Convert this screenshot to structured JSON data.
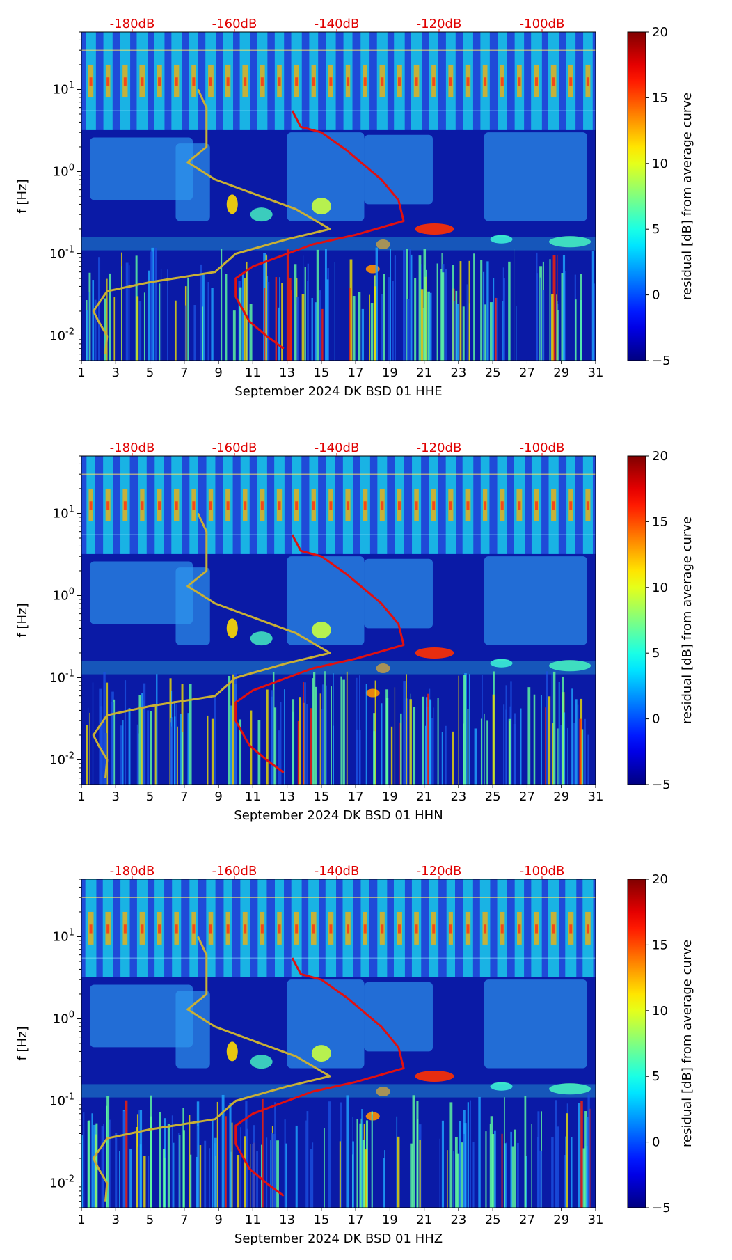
{
  "chart_data": [
    {
      "type": "heatmap",
      "xlabel": "September 2024 DK BSD 01 HHE",
      "ylabel": "f [Hz]",
      "x_ticks": [
        "1",
        "3",
        "5",
        "7",
        "9",
        "11",
        "13",
        "15",
        "17",
        "19",
        "21",
        "23",
        "25",
        "27",
        "29",
        "31"
      ],
      "y_ticks": [
        "10^-2",
        "10^-1",
        "10^0",
        "10^1"
      ],
      "xlim": [
        1,
        31
      ],
      "ylim": [
        0.005,
        50
      ],
      "y_scale": "log",
      "top_ticks": [
        "-180dB",
        "-160dB",
        "-140dB",
        "-120dB",
        "-100dB"
      ],
      "top_color": "#e00000",
      "colorbar": {
        "label": "residual [dB] from average curve",
        "ticks": [
          "-5",
          "0",
          "5",
          "10",
          "15",
          "20"
        ],
        "range": [
          -5,
          20
        ],
        "colormap": "jet"
      },
      "series": [
        {
          "color": "#e01010",
          "points": [
            [
              13.3,
              5.5
            ],
            [
              13.8,
              3.5
            ],
            [
              15.0,
              3.0
            ],
            [
              16.5,
              1.8
            ],
            [
              18.5,
              0.8
            ],
            [
              19.5,
              0.45
            ],
            [
              19.8,
              0.25
            ],
            [
              17.0,
              0.17
            ],
            [
              14.5,
              0.13
            ],
            [
              13.0,
              0.1
            ],
            [
              11.0,
              0.07
            ],
            [
              10.0,
              0.05
            ],
            [
              10.0,
              0.03
            ],
            [
              10.8,
              0.015
            ],
            [
              11.8,
              0.01
            ],
            [
              12.8,
              0.007
            ]
          ]
        },
        {
          "color": "#c9b035",
          "points": [
            [
              7.8,
              10.0
            ],
            [
              8.3,
              6.0
            ],
            [
              8.3,
              2.0
            ],
            [
              7.2,
              1.3
            ],
            [
              8.8,
              0.8
            ],
            [
              13.5,
              0.35
            ],
            [
              15.5,
              0.2
            ],
            [
              13.0,
              0.15
            ],
            [
              10.0,
              0.1
            ],
            [
              8.8,
              0.06
            ],
            [
              5.0,
              0.045
            ],
            [
              2.5,
              0.035
            ],
            [
              1.7,
              0.02
            ],
            [
              2.0,
              0.015
            ],
            [
              2.5,
              0.01
            ],
            [
              2.4,
              0.006
            ]
          ]
        }
      ]
    },
    {
      "type": "heatmap",
      "xlabel": "September 2024 DK BSD 01 HHN",
      "ylabel": "f [Hz]",
      "x_ticks": [
        "1",
        "3",
        "5",
        "7",
        "9",
        "11",
        "13",
        "15",
        "17",
        "19",
        "21",
        "23",
        "25",
        "27",
        "29",
        "31"
      ],
      "y_ticks": [
        "10^-2",
        "10^-1",
        "10^0",
        "10^1"
      ],
      "xlim": [
        1,
        31
      ],
      "ylim": [
        0.005,
        50
      ],
      "y_scale": "log",
      "top_ticks": [
        "-180dB",
        "-160dB",
        "-140dB",
        "-120dB",
        "-100dB"
      ],
      "top_color": "#e00000",
      "colorbar": {
        "label": "residual [dB] from average curve",
        "ticks": [
          "-5",
          "0",
          "5",
          "10",
          "15",
          "20"
        ],
        "range": [
          -5,
          20
        ],
        "colormap": "jet"
      },
      "series": [
        {
          "color": "#e01010",
          "points": [
            [
              13.3,
              5.5
            ],
            [
              13.8,
              3.5
            ],
            [
              15.0,
              3.0
            ],
            [
              16.5,
              1.8
            ],
            [
              18.5,
              0.8
            ],
            [
              19.5,
              0.45
            ],
            [
              19.8,
              0.25
            ],
            [
              17.0,
              0.17
            ],
            [
              14.5,
              0.13
            ],
            [
              13.0,
              0.1
            ],
            [
              11.0,
              0.07
            ],
            [
              10.0,
              0.05
            ],
            [
              10.0,
              0.03
            ],
            [
              10.8,
              0.015
            ],
            [
              11.8,
              0.01
            ],
            [
              12.8,
              0.007
            ]
          ]
        },
        {
          "color": "#c9b035",
          "points": [
            [
              7.8,
              10.0
            ],
            [
              8.3,
              6.0
            ],
            [
              8.3,
              2.0
            ],
            [
              7.2,
              1.3
            ],
            [
              8.8,
              0.8
            ],
            [
              13.5,
              0.35
            ],
            [
              15.5,
              0.2
            ],
            [
              13.0,
              0.15
            ],
            [
              10.0,
              0.1
            ],
            [
              8.8,
              0.06
            ],
            [
              5.0,
              0.045
            ],
            [
              2.5,
              0.035
            ],
            [
              1.7,
              0.02
            ],
            [
              2.0,
              0.015
            ],
            [
              2.5,
              0.01
            ],
            [
              2.4,
              0.006
            ]
          ]
        }
      ]
    },
    {
      "type": "heatmap",
      "xlabel": "September 2024 DK BSD 01 HHZ",
      "ylabel": "f [Hz]",
      "x_ticks": [
        "1",
        "3",
        "5",
        "7",
        "9",
        "11",
        "13",
        "15",
        "17",
        "19",
        "21",
        "23",
        "25",
        "27",
        "29",
        "31"
      ],
      "y_ticks": [
        "10^-2",
        "10^-1",
        "10^0",
        "10^1"
      ],
      "xlim": [
        1,
        31
      ],
      "ylim": [
        0.005,
        50
      ],
      "y_scale": "log",
      "top_ticks": [
        "-180dB",
        "-160dB",
        "-140dB",
        "-120dB",
        "-100dB"
      ],
      "top_color": "#e00000",
      "colorbar": {
        "label": "residual [dB] from average curve",
        "ticks": [
          "-5",
          "0",
          "5",
          "10",
          "15",
          "20"
        ],
        "range": [
          -5,
          20
        ],
        "colormap": "jet"
      },
      "series": [
        {
          "color": "#e01010",
          "points": [
            [
              13.3,
              5.5
            ],
            [
              13.8,
              3.5
            ],
            [
              15.0,
              3.0
            ],
            [
              16.5,
              1.8
            ],
            [
              18.5,
              0.8
            ],
            [
              19.5,
              0.45
            ],
            [
              19.8,
              0.25
            ],
            [
              17.0,
              0.17
            ],
            [
              14.5,
              0.13
            ],
            [
              13.0,
              0.1
            ],
            [
              11.0,
              0.07
            ],
            [
              10.0,
              0.05
            ],
            [
              10.0,
              0.03
            ],
            [
              10.8,
              0.015
            ],
            [
              11.8,
              0.01
            ],
            [
              12.8,
              0.007
            ]
          ]
        },
        {
          "color": "#c9b035",
          "points": [
            [
              7.8,
              10.0
            ],
            [
              8.3,
              6.0
            ],
            [
              8.3,
              2.0
            ],
            [
              7.2,
              1.3
            ],
            [
              8.8,
              0.8
            ],
            [
              13.5,
              0.35
            ],
            [
              15.5,
              0.2
            ],
            [
              13.0,
              0.15
            ],
            [
              10.0,
              0.1
            ],
            [
              8.8,
              0.06
            ],
            [
              5.0,
              0.045
            ],
            [
              2.5,
              0.035
            ],
            [
              1.7,
              0.02
            ],
            [
              2.0,
              0.015
            ],
            [
              2.5,
              0.01
            ],
            [
              2.4,
              0.006
            ]
          ]
        }
      ]
    }
  ]
}
